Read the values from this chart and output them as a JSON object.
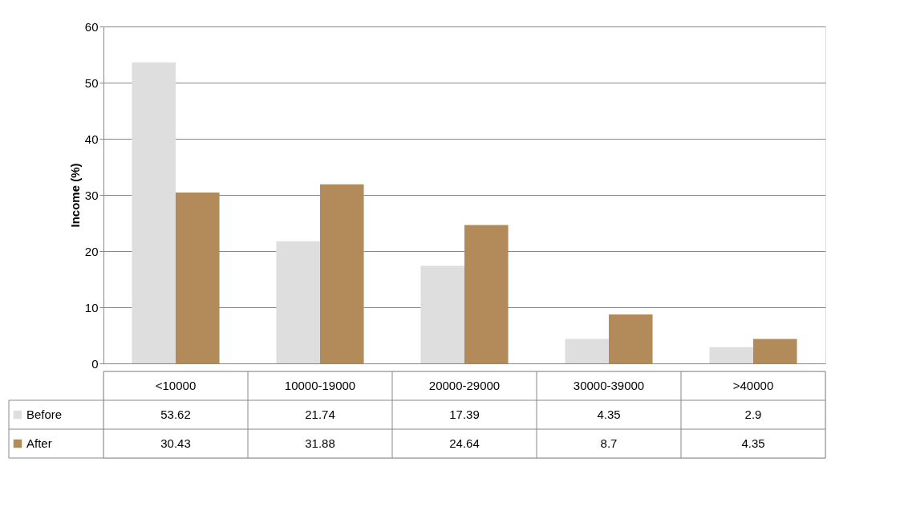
{
  "chart_data": {
    "type": "bar",
    "ylabel": "Income (%)",
    "categories": [
      "<10000",
      "10000-19000",
      "20000-29000",
      "30000-39000",
      ">40000"
    ],
    "series": [
      {
        "name": "Before",
        "color": "#dedede",
        "values": [
          53.62,
          21.74,
          17.39,
          4.35,
          2.9
        ]
      },
      {
        "name": "After",
        "color": "#b38b5a",
        "values": [
          30.43,
          31.88,
          24.64,
          8.7,
          4.35
        ]
      }
    ],
    "ylim": [
      0,
      60
    ],
    "yticks": [
      0,
      10,
      20,
      30,
      40,
      50,
      60
    ],
    "grid": "y",
    "data_labels": true,
    "legend": "bottom left"
  }
}
